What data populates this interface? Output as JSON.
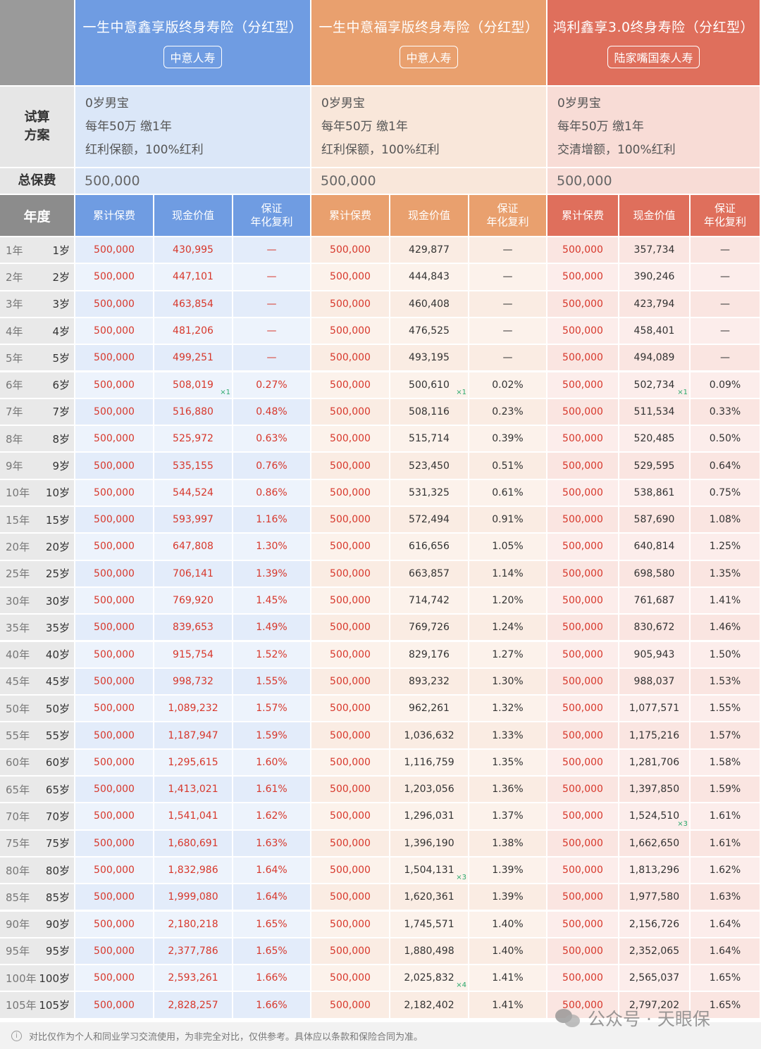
{
  "corner": "",
  "products": [
    {
      "name": "一生中意鑫享版终身寿险（分红型）",
      "company": "中意人寿",
      "plan": [
        "0岁男宝",
        "每年50万 缴1年",
        "红利保额，100%红利"
      ],
      "premium": "500,000"
    },
    {
      "name": "一生中意福享版终身寿险（分红型）",
      "company": "中意人寿",
      "plan": [
        "0岁男宝",
        "每年50万 缴1年",
        "红利保额，100%红利"
      ],
      "premium": "500,000"
    },
    {
      "name": "鸿利鑫享3.0终身寿险（分红型）",
      "company": "陆家嘴国泰人寿",
      "plan": [
        "0岁男宝",
        "每年50万 缴1年",
        "交清增额，100%红利"
      ],
      "premium": "500,000"
    }
  ],
  "labels": {
    "plan": "试算\n方案",
    "premium": "总保费",
    "year": "年度"
  },
  "col_headers": {
    "cumulative": "累计保费",
    "cash": "现金价值",
    "guarantee_line1": "保证",
    "guarantee_line2": "年化复利"
  },
  "rows": [
    {
      "y": "1年",
      "a": "1岁",
      "v": [
        [
          "500,000",
          "430,995",
          "—"
        ],
        [
          "500,000",
          "429,877",
          "—"
        ],
        [
          "500,000",
          "357,734",
          "—"
        ]
      ]
    },
    {
      "y": "2年",
      "a": "2岁",
      "v": [
        [
          "500,000",
          "447,101",
          "—"
        ],
        [
          "500,000",
          "444,843",
          "—"
        ],
        [
          "500,000",
          "390,246",
          "—"
        ]
      ]
    },
    {
      "y": "3年",
      "a": "3岁",
      "v": [
        [
          "500,000",
          "463,854",
          "—"
        ],
        [
          "500,000",
          "460,408",
          "—"
        ],
        [
          "500,000",
          "423,794",
          "—"
        ]
      ]
    },
    {
      "y": "4年",
      "a": "4岁",
      "v": [
        [
          "500,000",
          "481,206",
          "—"
        ],
        [
          "500,000",
          "476,525",
          "—"
        ],
        [
          "500,000",
          "458,401",
          "—"
        ]
      ]
    },
    {
      "y": "5年",
      "a": "5岁",
      "v": [
        [
          "500,000",
          "499,251",
          "—"
        ],
        [
          "500,000",
          "493,195",
          "—"
        ],
        [
          "500,000",
          "494,089",
          "—"
        ]
      ]
    },
    {
      "y": "6年",
      "a": "6岁",
      "v": [
        [
          "500,000",
          "508,019",
          "0.27%"
        ],
        [
          "500,000",
          "500,610",
          "0.02%"
        ],
        [
          "500,000",
          "502,734",
          "0.09%"
        ]
      ],
      "marks": [
        "×1",
        "×1",
        "×1"
      ]
    },
    {
      "y": "7年",
      "a": "7岁",
      "v": [
        [
          "500,000",
          "516,880",
          "0.48%"
        ],
        [
          "500,000",
          "508,116",
          "0.23%"
        ],
        [
          "500,000",
          "511,534",
          "0.33%"
        ]
      ]
    },
    {
      "y": "8年",
      "a": "8岁",
      "v": [
        [
          "500,000",
          "525,972",
          "0.63%"
        ],
        [
          "500,000",
          "515,714",
          "0.39%"
        ],
        [
          "500,000",
          "520,485",
          "0.50%"
        ]
      ]
    },
    {
      "y": "9年",
      "a": "9岁",
      "v": [
        [
          "500,000",
          "535,155",
          "0.76%"
        ],
        [
          "500,000",
          "523,450",
          "0.51%"
        ],
        [
          "500,000",
          "529,595",
          "0.64%"
        ]
      ]
    },
    {
      "y": "10年",
      "a": "10岁",
      "v": [
        [
          "500,000",
          "544,524",
          "0.86%"
        ],
        [
          "500,000",
          "531,325",
          "0.61%"
        ],
        [
          "500,000",
          "538,861",
          "0.75%"
        ]
      ]
    },
    {
      "y": "15年",
      "a": "15岁",
      "v": [
        [
          "500,000",
          "593,997",
          "1.16%"
        ],
        [
          "500,000",
          "572,494",
          "0.91%"
        ],
        [
          "500,000",
          "587,690",
          "1.08%"
        ]
      ]
    },
    {
      "y": "20年",
      "a": "20岁",
      "v": [
        [
          "500,000",
          "647,808",
          "1.30%"
        ],
        [
          "500,000",
          "616,656",
          "1.05%"
        ],
        [
          "500,000",
          "640,814",
          "1.25%"
        ]
      ]
    },
    {
      "y": "25年",
      "a": "25岁",
      "v": [
        [
          "500,000",
          "706,141",
          "1.39%"
        ],
        [
          "500,000",
          "663,857",
          "1.14%"
        ],
        [
          "500,000",
          "698,580",
          "1.35%"
        ]
      ]
    },
    {
      "y": "30年",
      "a": "30岁",
      "v": [
        [
          "500,000",
          "769,920",
          "1.45%"
        ],
        [
          "500,000",
          "714,742",
          "1.20%"
        ],
        [
          "500,000",
          "761,687",
          "1.41%"
        ]
      ]
    },
    {
      "y": "35年",
      "a": "35岁",
      "v": [
        [
          "500,000",
          "839,653",
          "1.49%"
        ],
        [
          "500,000",
          "769,726",
          "1.24%"
        ],
        [
          "500,000",
          "830,672",
          "1.46%"
        ]
      ]
    },
    {
      "y": "40年",
      "a": "40岁",
      "v": [
        [
          "500,000",
          "915,754",
          "1.52%"
        ],
        [
          "500,000",
          "829,176",
          "1.27%"
        ],
        [
          "500,000",
          "905,943",
          "1.50%"
        ]
      ]
    },
    {
      "y": "45年",
      "a": "45岁",
      "v": [
        [
          "500,000",
          "998,732",
          "1.55%"
        ],
        [
          "500,000",
          "893,232",
          "1.30%"
        ],
        [
          "500,000",
          "988,037",
          "1.53%"
        ]
      ]
    },
    {
      "y": "50年",
      "a": "50岁",
      "v": [
        [
          "500,000",
          "1,089,232",
          "1.57%"
        ],
        [
          "500,000",
          "962,261",
          "1.32%"
        ],
        [
          "500,000",
          "1,077,571",
          "1.55%"
        ]
      ]
    },
    {
      "y": "55年",
      "a": "55岁",
      "v": [
        [
          "500,000",
          "1,187,947",
          "1.59%"
        ],
        [
          "500,000",
          "1,036,632",
          "1.33%"
        ],
        [
          "500,000",
          "1,175,216",
          "1.57%"
        ]
      ]
    },
    {
      "y": "60年",
      "a": "60岁",
      "v": [
        [
          "500,000",
          "1,295,615",
          "1.60%"
        ],
        [
          "500,000",
          "1,116,759",
          "1.35%"
        ],
        [
          "500,000",
          "1,281,706",
          "1.58%"
        ]
      ]
    },
    {
      "y": "65年",
      "a": "65岁",
      "v": [
        [
          "500,000",
          "1,413,021",
          "1.61%"
        ],
        [
          "500,000",
          "1,203,056",
          "1.36%"
        ],
        [
          "500,000",
          "1,397,850",
          "1.59%"
        ]
      ]
    },
    {
      "y": "70年",
      "a": "70岁",
      "v": [
        [
          "500,000",
          "1,541,041",
          "1.62%"
        ],
        [
          "500,000",
          "1,296,031",
          "1.37%"
        ],
        [
          "500,000",
          "1,524,510",
          "1.61%"
        ]
      ],
      "marks": [
        null,
        null,
        "×3"
      ]
    },
    {
      "y": "75年",
      "a": "75岁",
      "v": [
        [
          "500,000",
          "1,680,691",
          "1.63%"
        ],
        [
          "500,000",
          "1,396,190",
          "1.38%"
        ],
        [
          "500,000",
          "1,662,650",
          "1.61%"
        ]
      ]
    },
    {
      "y": "80年",
      "a": "80岁",
      "v": [
        [
          "500,000",
          "1,832,986",
          "1.64%"
        ],
        [
          "500,000",
          "1,504,131",
          "1.39%"
        ],
        [
          "500,000",
          "1,813,296",
          "1.62%"
        ]
      ],
      "marks": [
        null,
        "×3",
        null
      ]
    },
    {
      "y": "85年",
      "a": "85岁",
      "v": [
        [
          "500,000",
          "1,999,080",
          "1.64%"
        ],
        [
          "500,000",
          "1,620,361",
          "1.39%"
        ],
        [
          "500,000",
          "1,977,580",
          "1.63%"
        ]
      ]
    },
    {
      "y": "90年",
      "a": "90岁",
      "v": [
        [
          "500,000",
          "2,180,218",
          "1.65%"
        ],
        [
          "500,000",
          "1,745,571",
          "1.40%"
        ],
        [
          "500,000",
          "2,156,726",
          "1.64%"
        ]
      ]
    },
    {
      "y": "95年",
      "a": "95岁",
      "v": [
        [
          "500,000",
          "2,377,786",
          "1.65%"
        ],
        [
          "500,000",
          "1,880,498",
          "1.40%"
        ],
        [
          "500,000",
          "2,352,065",
          "1.64%"
        ]
      ]
    },
    {
      "y": "100年",
      "a": "100岁",
      "v": [
        [
          "500,000",
          "2,593,261",
          "1.66%"
        ],
        [
          "500,000",
          "2,025,832",
          "1.41%"
        ],
        [
          "500,000",
          "2,565,037",
          "1.65%"
        ]
      ],
      "marks": [
        null,
        "×4",
        null
      ]
    },
    {
      "y": "105年",
      "a": "105岁",
      "v": [
        [
          "500,000",
          "2,828,257",
          "1.66%"
        ],
        [
          "500,000",
          "2,182,402",
          "1.41%"
        ],
        [
          "500,000",
          "2,797,202",
          "1.65%"
        ]
      ]
    }
  ],
  "footer": "对比仅作为个人和同业学习交流使用，为非完全对比，仅供参考。具体应以条款和保险合同为准。",
  "watermark": "公众号 · 天眼保",
  "colors": {
    "blue": "#6f9ce2",
    "orange": "#e9a06e",
    "red": "#df6f5c",
    "value_red": "#d7372b",
    "mark_green": "#29a86b"
  }
}
